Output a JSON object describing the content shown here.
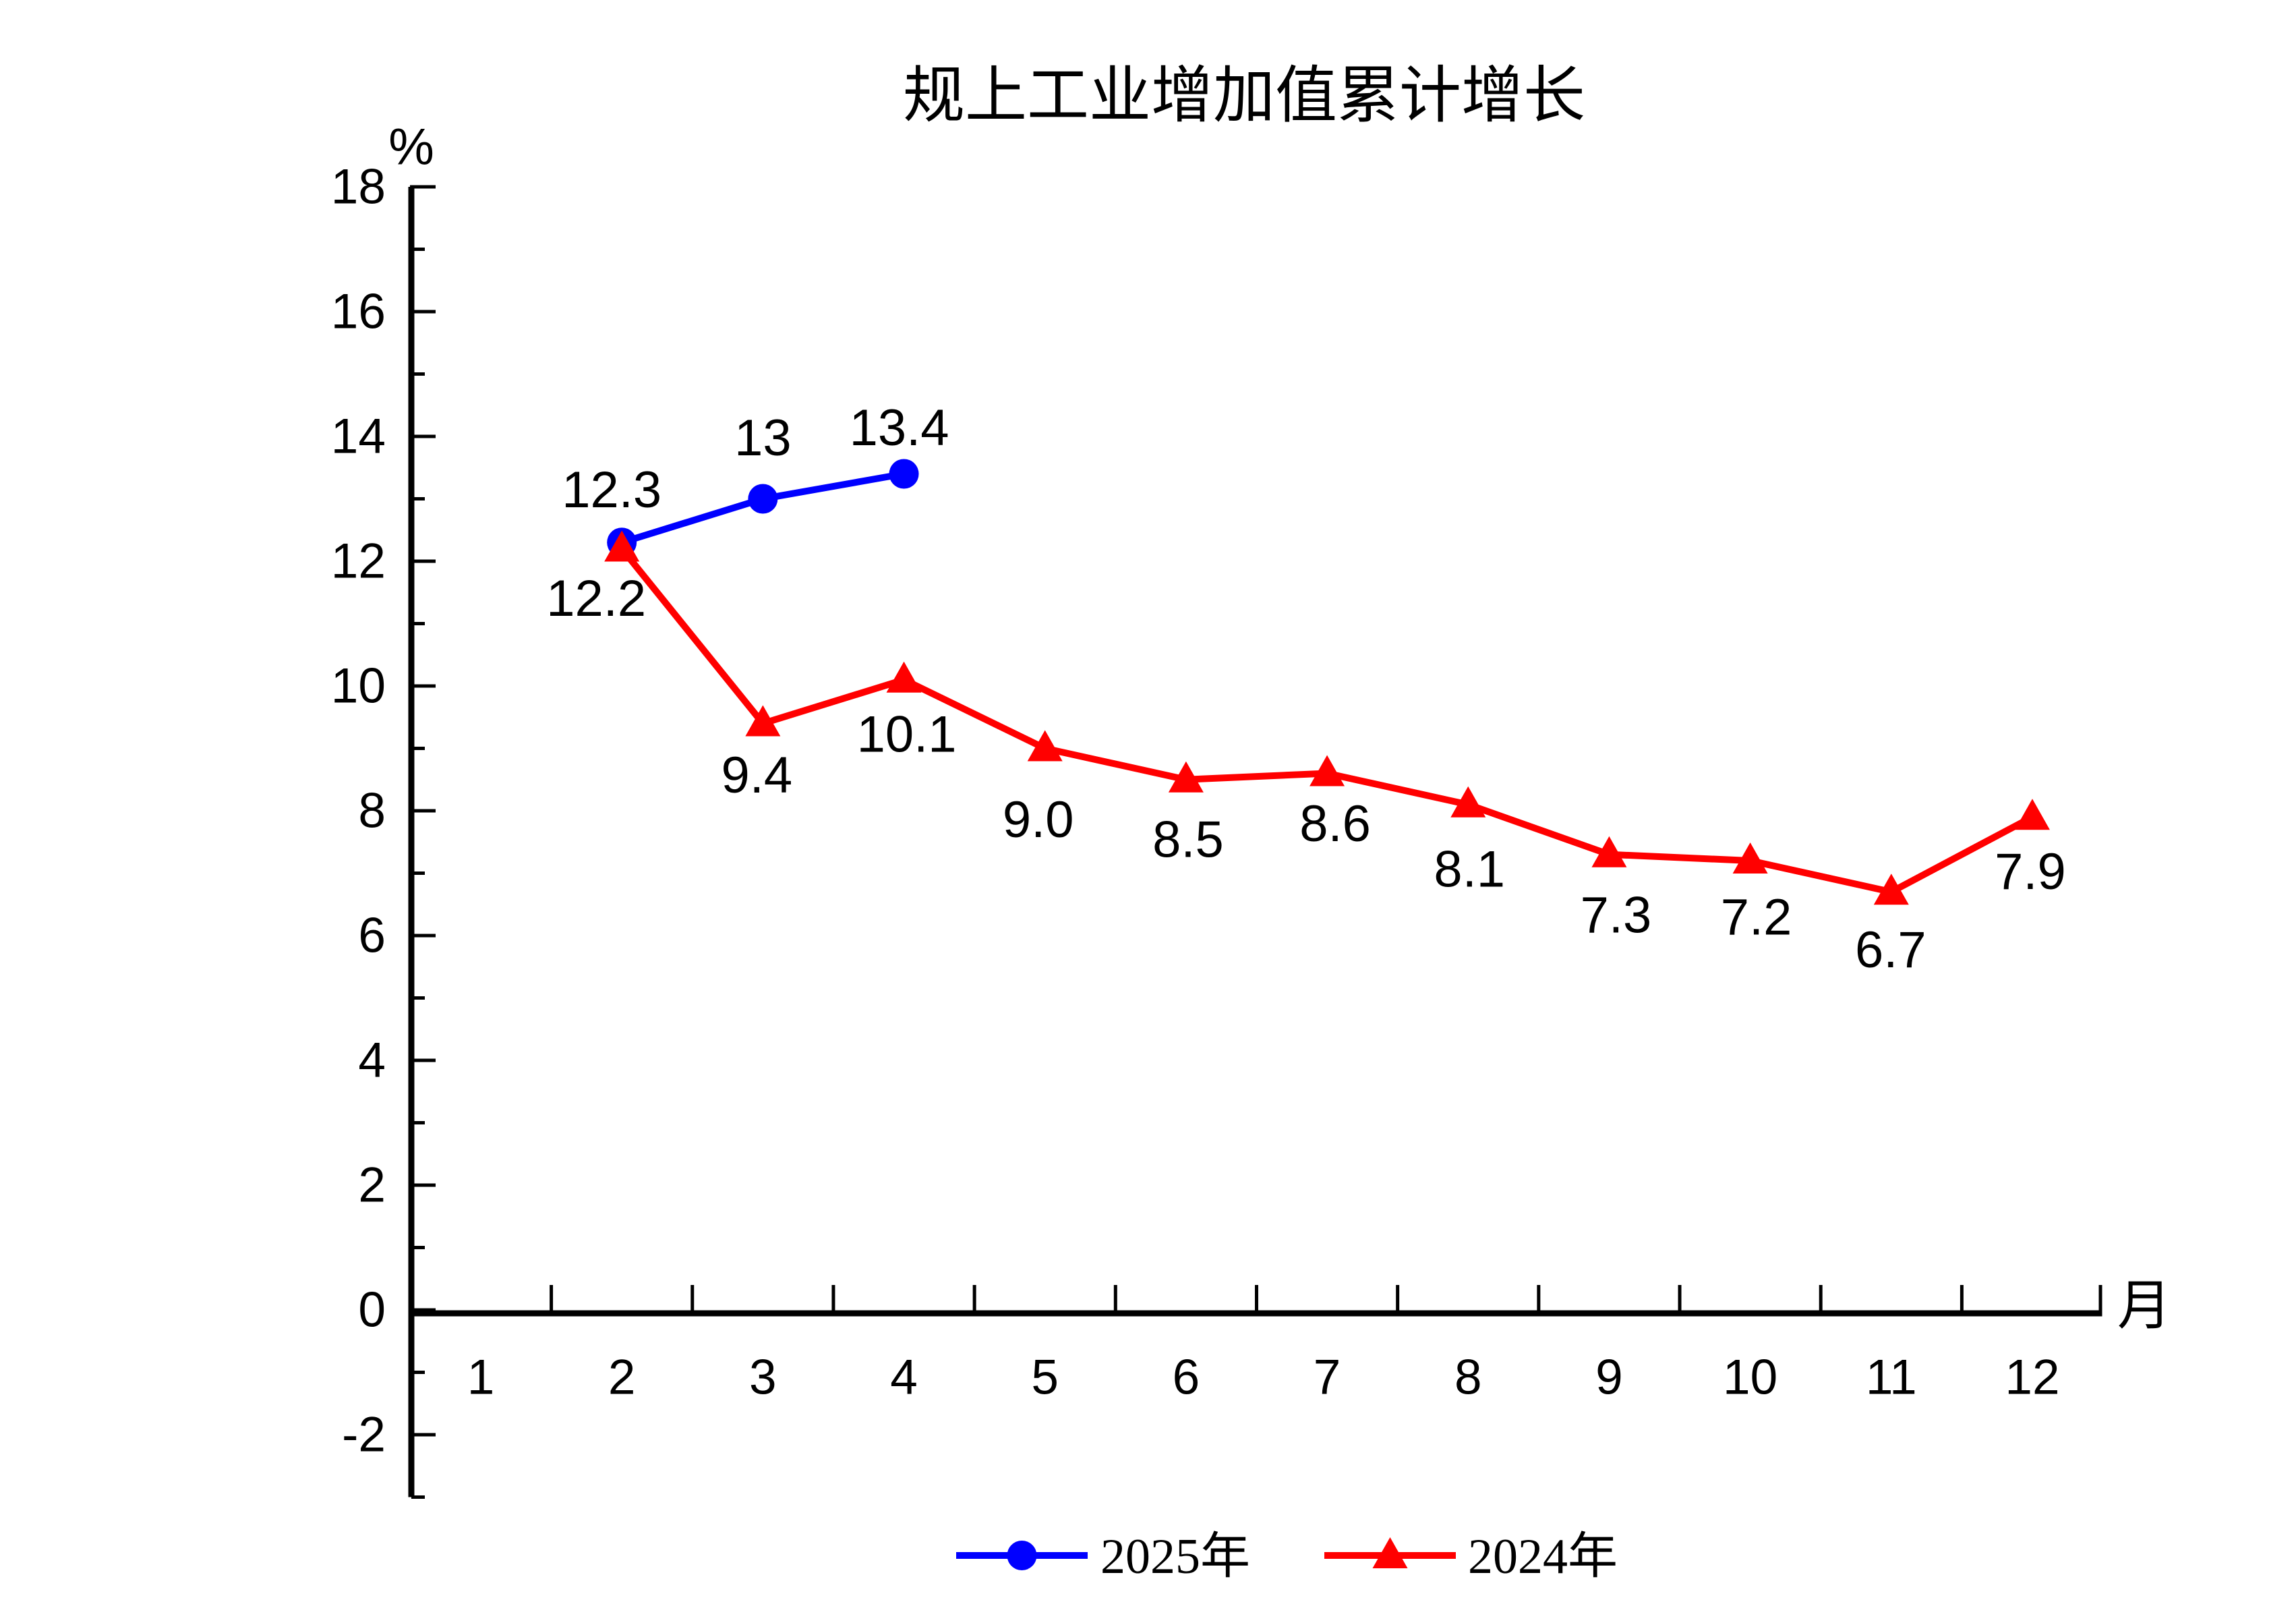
{
  "chart_data": {
    "type": "line",
    "title": "规上工业增加值累计增长",
    "xlabel": "月",
    "ylabel": "%",
    "x_tick_labels": [
      "1",
      "2",
      "3",
      "4",
      "5",
      "6",
      "7",
      "8",
      "9",
      "10",
      "11",
      "12"
    ],
    "y_axis": {
      "major_ticks": [
        18,
        16,
        14,
        12,
        10,
        8,
        6,
        4,
        2,
        0,
        -2
      ],
      "minor_ticks": [
        17,
        15,
        13,
        11,
        9,
        7,
        5,
        3,
        1,
        -1,
        -3
      ],
      "ylim_draw": [
        -3,
        18
      ],
      "ylim_labeled": [
        -2,
        18
      ]
    },
    "grid": false,
    "legend_position": "bottom-center",
    "series": [
      {
        "name": "2025年",
        "color": "#0000ff",
        "marker": "circle",
        "points": [
          {
            "month": 2,
            "value": 12.3,
            "label": "12.3",
            "label_dx": -15,
            "label_dy": -78
          },
          {
            "month": 3,
            "value": 13,
            "label": "13",
            "label_dx": 0,
            "label_dy": -90
          },
          {
            "month": 4,
            "value": 13.4,
            "label": "13.4",
            "label_dx": -7,
            "label_dy": -68
          }
        ]
      },
      {
        "name": "2024年",
        "color": "#ff0000",
        "marker": "triangle-up",
        "points": [
          {
            "month": 2,
            "value": 12.2,
            "label": "12.2",
            "label_dx": -38,
            "label_dy": 74
          },
          {
            "month": 3,
            "value": 9.4,
            "label": "9.4",
            "label_dx": -9,
            "label_dy": 77
          },
          {
            "month": 4,
            "value": 10.1,
            "label": "10.1",
            "label_dx": 4,
            "label_dy": 81
          },
          {
            "month": 5,
            "value": 9.0,
            "label": "9.0",
            "label_dx": -10,
            "label_dy": 106
          },
          {
            "month": 6,
            "value": 8.5,
            "label": "8.5",
            "label_dx": 3,
            "label_dy": 89
          },
          {
            "month": 7,
            "value": 8.6,
            "label": "8.6",
            "label_dx": 12,
            "label_dy": 75
          },
          {
            "month": 8,
            "value": 8.1,
            "label": "8.1",
            "label_dx": 2,
            "label_dy": 96
          },
          {
            "month": 9,
            "value": 7.3,
            "label": "7.3",
            "label_dx": 10,
            "label_dy": 90
          },
          {
            "month": 10,
            "value": 7.2,
            "label": "7.2",
            "label_dx": 9,
            "label_dy": 84
          },
          {
            "month": 11,
            "value": 6.7,
            "label": "6.7",
            "label_dx": -1,
            "label_dy": 86
          },
          {
            "month": 12,
            "value": 7.9,
            "label": "7.9",
            "label_dx": -3,
            "label_dy": 81
          }
        ]
      }
    ]
  }
}
